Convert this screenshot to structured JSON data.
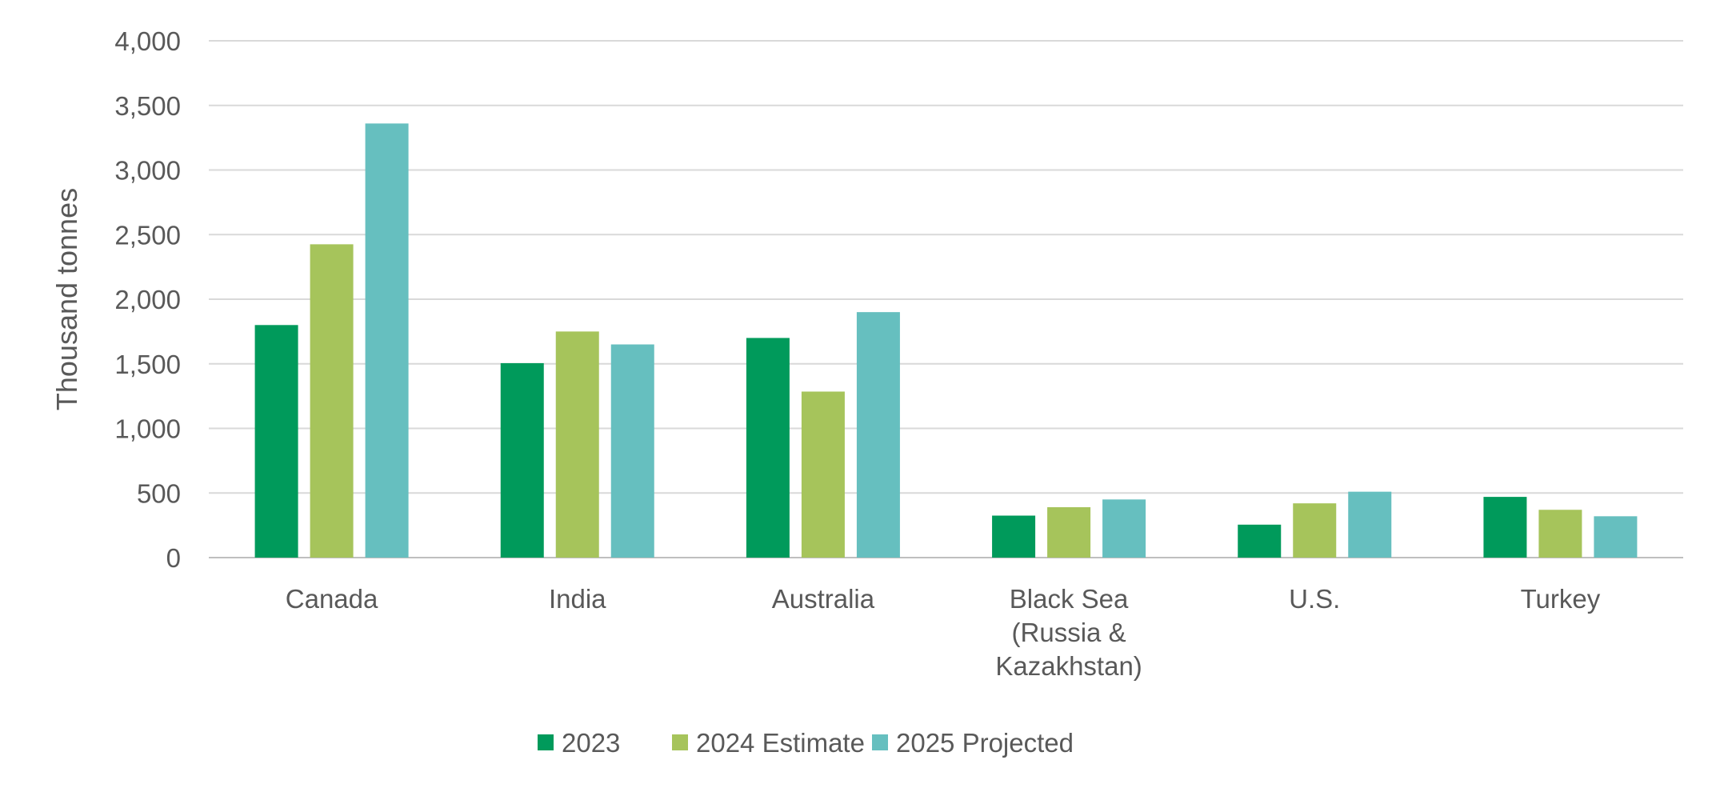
{
  "chart_data": {
    "type": "bar",
    "title": "",
    "xlabel": "",
    "ylabel": "Thousand tonnes",
    "ylim": [
      0,
      4000
    ],
    "yticks": [
      0,
      500,
      1000,
      1500,
      2000,
      2500,
      3000,
      3500,
      4000
    ],
    "ytick_labels": [
      "0",
      "500",
      "1,000",
      "1,500",
      "2,000",
      "2,500",
      "3,000",
      "3,500",
      "4,000"
    ],
    "grid": true,
    "legend_position": "bottom",
    "categories": [
      [
        "Canada"
      ],
      [
        "India"
      ],
      [
        "Australia"
      ],
      [
        "Black Sea",
        "(Russia &",
        "Kazakhstan)"
      ],
      [
        "U.S."
      ],
      [
        "Turkey"
      ]
    ],
    "series": [
      {
        "name": "2023",
        "color": "#009A5B",
        "values": [
          1800,
          1505,
          1700,
          325,
          255,
          470
        ]
      },
      {
        "name": "2024 Estimate",
        "color": "#A6C45B",
        "values": [
          2425,
          1750,
          1285,
          390,
          420,
          370
        ]
      },
      {
        "name": "2025 Projected",
        "color": "#66BFBF",
        "values": [
          3360,
          1650,
          1900,
          450,
          510,
          320
        ]
      }
    ]
  }
}
